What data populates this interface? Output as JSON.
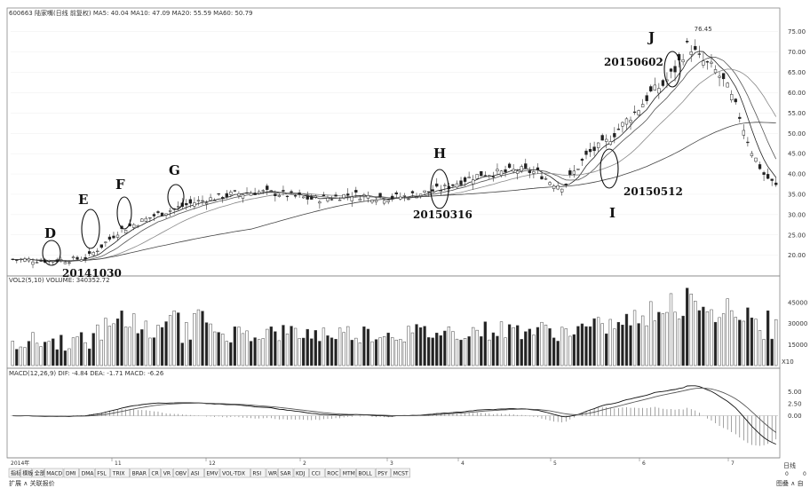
{
  "header": {
    "price_legend": "600663 陆家嘴(日线 前复权) MA5: 40.04 MA10: 47.09 MA20: 55.59 MA60: 50.79",
    "volume_legend": "VOL2(5,10) VOLUME: 340352.72",
    "macd_legend": "MACD(12,26,9) DIF: -4.84 DEA: -1.71 MACD: -6.26"
  },
  "bottom_tabs": [
    "指标",
    "模板",
    "全部",
    "MACD",
    "DMI",
    "DMA",
    "FSL",
    "TRIX",
    "BRAR",
    "CR",
    "VR",
    "OBV",
    "ASI",
    "EMV",
    "VOL-TDX",
    "RSI",
    "WR",
    "SAR",
    "KDJ",
    "CCI",
    "ROC",
    "MTM",
    "BOLL",
    "PSY",
    "MCST"
  ],
  "status_left": "扩展 ∧ 关联报价",
  "status_right": "图叠 ∧ 自",
  "right_panel": {
    "day_label": "日线",
    "macd_top": "0",
    "macd_bottom": "0"
  },
  "date_axis": {
    "start": "2014年",
    "months": [
      "11",
      "12",
      "2",
      "3",
      "4",
      "5",
      "6",
      "7"
    ]
  },
  "chart_data": [
    {
      "type": "candlestick",
      "role": "price",
      "ylim": [
        16,
        78
      ],
      "yticks": [
        "75.00",
        "70.00",
        "65.00",
        "60.00",
        "55.00",
        "50.00",
        "45.00",
        "40.00",
        "35.00",
        "30.00",
        "25.00",
        "20.00"
      ],
      "max_label": "76.45",
      "ma_series": [
        "MA5",
        "MA10",
        "MA20",
        "MA60"
      ],
      "annotations": [
        {
          "letter": "D",
          "date": "20141030"
        },
        {
          "letter": "E",
          "date": ""
        },
        {
          "letter": "F",
          "date": ""
        },
        {
          "letter": "G",
          "date": ""
        },
        {
          "letter": "H",
          "date": "20150316"
        },
        {
          "letter": "I",
          "date": "20150512"
        },
        {
          "letter": "J",
          "date": "20150602"
        }
      ]
    },
    {
      "type": "bar",
      "role": "volume",
      "yticks": [
        "45000",
        "30000",
        "15000"
      ],
      "ylim": [
        0,
        52000
      ],
      "corner_label": "X10"
    },
    {
      "type": "line",
      "role": "macd",
      "series": [
        {
          "name": "DIF"
        },
        {
          "name": "DEA"
        },
        {
          "name": "MACD"
        }
      ],
      "yticks": [
        "5.00",
        "2.50",
        "0.00"
      ]
    }
  ]
}
